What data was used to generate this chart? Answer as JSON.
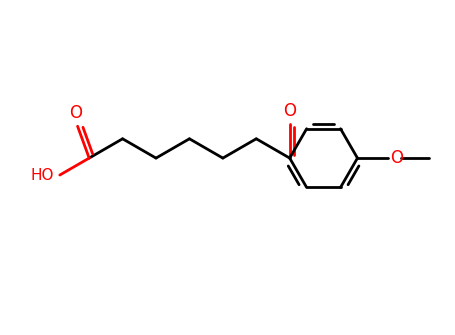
{
  "bg_color": "#ffffff",
  "bond_color": "#000000",
  "red_color": "#ff0000",
  "line_width": 2.0,
  "figsize": [
    4.56,
    3.35
  ],
  "dpi": 100,
  "xlim": [
    0,
    9.5
  ],
  "ylim": [
    0,
    7
  ]
}
